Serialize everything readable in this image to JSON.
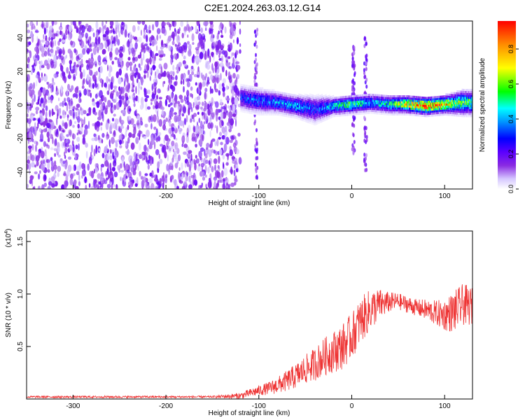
{
  "title": "C2E1.2024.263.03.12.G14",
  "colorbar": {
    "label": "Normalized spectral amplitude",
    "ticks": [
      "0.0",
      "0.2",
      "0.4",
      "0.6",
      "0.8"
    ],
    "range": [
      0.0,
      0.96
    ],
    "colormap": [
      "#ffffff",
      "#d6c8ff",
      "#8a2be2",
      "#5b00ff",
      "#0000ff",
      "#0096ff",
      "#00ffff",
      "#00ff00",
      "#ffff00",
      "#ff8c00",
      "#ff0000"
    ]
  },
  "chart_data": [
    {
      "type": "heatmap",
      "name": "spectrogram",
      "xlabel": "Height of straight line (km)",
      "ylabel": "Frequency (Hz)",
      "xlim": [
        -350,
        130
      ],
      "ylim": [
        -50,
        50
      ],
      "xticks": [
        -300,
        -200,
        -100,
        0,
        100
      ],
      "yticks": [
        -40,
        -20,
        0,
        20,
        40
      ],
      "noise_region": [
        -350,
        -120
      ],
      "signal_band": [
        {
          "x": -120,
          "freq": 5,
          "width": 8,
          "amp": 0.3
        },
        {
          "x": -100,
          "freq": 3,
          "width": 8,
          "amp": 0.35
        },
        {
          "x": -80,
          "freq": 2,
          "width": 7,
          "amp": 0.38
        },
        {
          "x": -60,
          "freq": 0,
          "width": 7,
          "amp": 0.42
        },
        {
          "x": -40,
          "freq": -2,
          "width": 9,
          "amp": 0.3
        },
        {
          "x": -20,
          "freq": 0,
          "width": 6,
          "amp": 0.45
        },
        {
          "x": 0,
          "freq": 1,
          "width": 6,
          "amp": 0.55
        },
        {
          "x": 20,
          "freq": 2,
          "width": 6,
          "amp": 0.4
        },
        {
          "x": 40,
          "freq": 1,
          "width": 6,
          "amp": 0.5
        },
        {
          "x": 60,
          "freq": 1,
          "width": 6,
          "amp": 0.7
        },
        {
          "x": 80,
          "freq": 0,
          "width": 6,
          "amp": 0.9
        },
        {
          "x": 100,
          "freq": 1,
          "width": 6,
          "amp": 0.75
        },
        {
          "x": 120,
          "freq": 2,
          "width": 8,
          "amp": 0.6
        },
        {
          "x": 130,
          "freq": 2,
          "width": 8,
          "amp": 0.55
        }
      ],
      "vertical_features": [
        {
          "x": 2,
          "freq_range": [
            -30,
            35
          ]
        },
        {
          "x": 15,
          "freq_range": [
            -40,
            40
          ]
        },
        {
          "x": -103,
          "freq_range": [
            -45,
            45
          ]
        }
      ]
    },
    {
      "type": "line",
      "name": "snr",
      "xlabel": "Height of straight line (km)",
      "ylabel": "SNR (10 * v/v)",
      "y_multiplier": "(x10^4)",
      "xlim": [
        -350,
        130
      ],
      "ylim": [
        0,
        1.6
      ],
      "xticks": [
        -300,
        -200,
        -100,
        0,
        100
      ],
      "yticks": [
        0.5,
        1.0,
        1.5
      ],
      "color": "#ee3333",
      "x": [
        -350,
        -300,
        -250,
        -200,
        -150,
        -120,
        -100,
        -90,
        -80,
        -70,
        -60,
        -50,
        -40,
        -30,
        -20,
        -10,
        0,
        10,
        20,
        30,
        40,
        50,
        60,
        70,
        80,
        90,
        100,
        110,
        120,
        130
      ],
      "y": [
        0.02,
        0.02,
        0.02,
        0.02,
        0.02,
        0.03,
        0.08,
        0.1,
        0.13,
        0.17,
        0.22,
        0.28,
        0.33,
        0.4,
        0.45,
        0.5,
        0.6,
        0.75,
        0.85,
        0.9,
        0.92,
        0.93,
        0.9,
        0.87,
        0.85,
        0.82,
        0.8,
        0.83,
        0.9,
        0.88
      ],
      "noise_amplitude": [
        0.01,
        0.01,
        0.01,
        0.01,
        0.01,
        0.03,
        0.05,
        0.06,
        0.08,
        0.1,
        0.12,
        0.14,
        0.16,
        0.18,
        0.2,
        0.22,
        0.22,
        0.22,
        0.2,
        0.15,
        0.1,
        0.08,
        0.08,
        0.08,
        0.1,
        0.12,
        0.15,
        0.2,
        0.2,
        0.18
      ]
    }
  ]
}
